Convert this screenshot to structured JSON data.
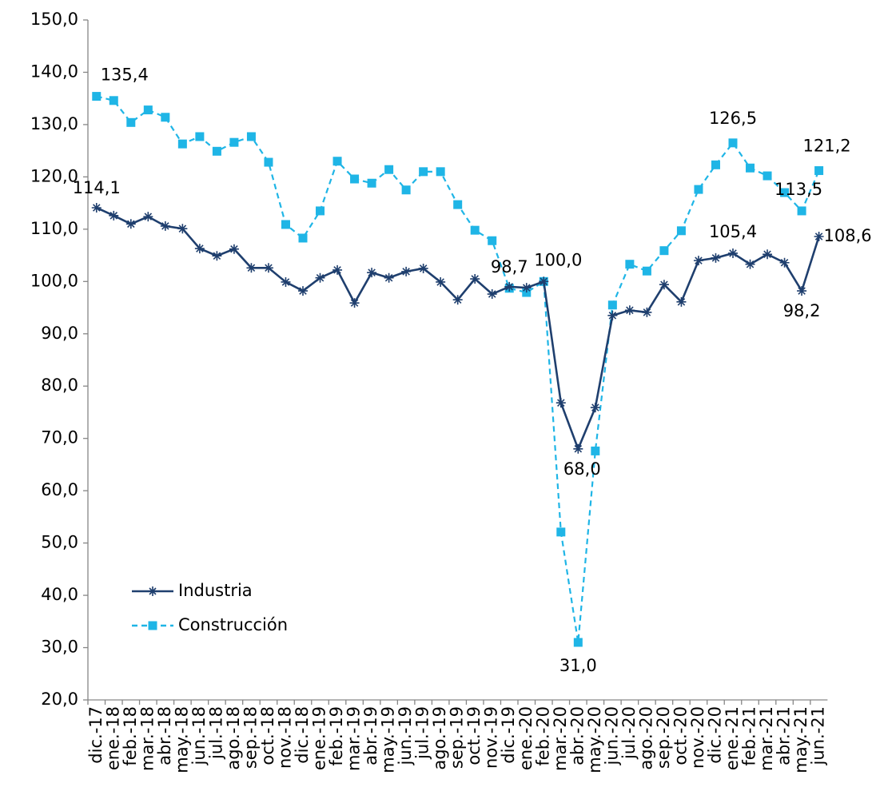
{
  "chart_data": {
    "type": "line",
    "categories": [
      "dic.-17",
      "ene.-18",
      "feb.-18",
      "mar.-18",
      "abr.-18",
      "may.-18",
      "jun.-18",
      "jul.-18",
      "ago.-18",
      "sep.-18",
      "oct.-18",
      "nov.-18",
      "dic.-18",
      "ene.-19",
      "feb.-19",
      "mar.-19",
      "abr.-19",
      "may.-19",
      "jun.-19",
      "jul.-19",
      "ago.-19",
      "sep.-19",
      "oct.-19",
      "nov.-19",
      "dic.-19",
      "ene.-20",
      "feb.-20",
      "mar.-20",
      "abr.-20",
      "may.-20",
      "jun.-20",
      "jul.-20",
      "ago.-20",
      "sep.-20",
      "oct.-20",
      "nov.-20",
      "dic.-20",
      "ene.-21",
      "feb.-21",
      "mar.-21",
      "abr.-21",
      "may.-21",
      "jun.-21"
    ],
    "series": [
      {
        "name": "Industria",
        "color": "#1f3f6e",
        "dash": false,
        "marker": "asterisk",
        "values": [
          114.1,
          112.6,
          111.0,
          112.4,
          110.6,
          110.1,
          106.3,
          104.9,
          106.2,
          102.6,
          102.6,
          99.9,
          98.2,
          100.7,
          102.2,
          95.9,
          101.7,
          100.7,
          101.9,
          102.5,
          99.9,
          96.5,
          100.5,
          97.6,
          99.0,
          98.8,
          100.0,
          76.8,
          68.0,
          75.9,
          93.5,
          94.5,
          94.1,
          99.4,
          96.1,
          104.0,
          104.5,
          105.4,
          103.3,
          105.2,
          103.6,
          98.2,
          108.6
        ],
        "value_labels": [
          "114,1",
          null,
          null,
          null,
          null,
          null,
          null,
          null,
          null,
          null,
          null,
          null,
          null,
          null,
          null,
          null,
          null,
          null,
          null,
          null,
          null,
          null,
          null,
          null,
          null,
          null,
          "100,0",
          null,
          "68,0",
          null,
          null,
          null,
          null,
          null,
          null,
          null,
          null,
          "105,4",
          null,
          null,
          null,
          "98,2",
          "108,6"
        ]
      },
      {
        "name": "Construcción",
        "color": "#1fb5e6",
        "dash": true,
        "marker": "square",
        "values": [
          135.4,
          134.6,
          130.4,
          132.8,
          131.4,
          126.3,
          127.7,
          124.9,
          126.6,
          127.7,
          122.8,
          110.9,
          108.3,
          113.5,
          123.0,
          119.6,
          118.8,
          121.4,
          117.5,
          121.0,
          121.0,
          114.7,
          109.8,
          107.8,
          98.7,
          97.9,
          100.0,
          52.1,
          31.0,
          67.6,
          95.5,
          103.3,
          102.0,
          105.9,
          109.7,
          117.6,
          122.3,
          126.5,
          121.7,
          120.2,
          117.0,
          113.5,
          121.2
        ],
        "value_labels": [
          "135,4",
          null,
          null,
          null,
          null,
          null,
          null,
          null,
          null,
          null,
          null,
          null,
          null,
          null,
          null,
          null,
          null,
          null,
          null,
          null,
          null,
          null,
          null,
          null,
          "98,7",
          null,
          null,
          null,
          "31,0",
          null,
          null,
          null,
          null,
          null,
          null,
          null,
          null,
          "126,5",
          null,
          null,
          null,
          "113,5",
          "121,2"
        ]
      }
    ],
    "ylim": [
      20,
      150
    ],
    "yticks": [
      {
        "value": 20,
        "label": "20,0"
      },
      {
        "value": 30,
        "label": "30,0"
      },
      {
        "value": 40,
        "label": "40,0"
      },
      {
        "value": 50,
        "label": "50,0"
      },
      {
        "value": 60,
        "label": "60,0"
      },
      {
        "value": 70,
        "label": "70,0"
      },
      {
        "value": 80,
        "label": "80,0"
      },
      {
        "value": 90,
        "label": "90,0"
      },
      {
        "value": 100,
        "label": "100,0"
      },
      {
        "value": 110,
        "label": "110,0"
      },
      {
        "value": 120,
        "label": "120,0"
      },
      {
        "value": 130,
        "label": "130,0"
      },
      {
        "value": 140,
        "label": "140,0"
      },
      {
        "value": 150,
        "label": "150,0"
      }
    ],
    "grid": false,
    "legend": "lower-left"
  }
}
